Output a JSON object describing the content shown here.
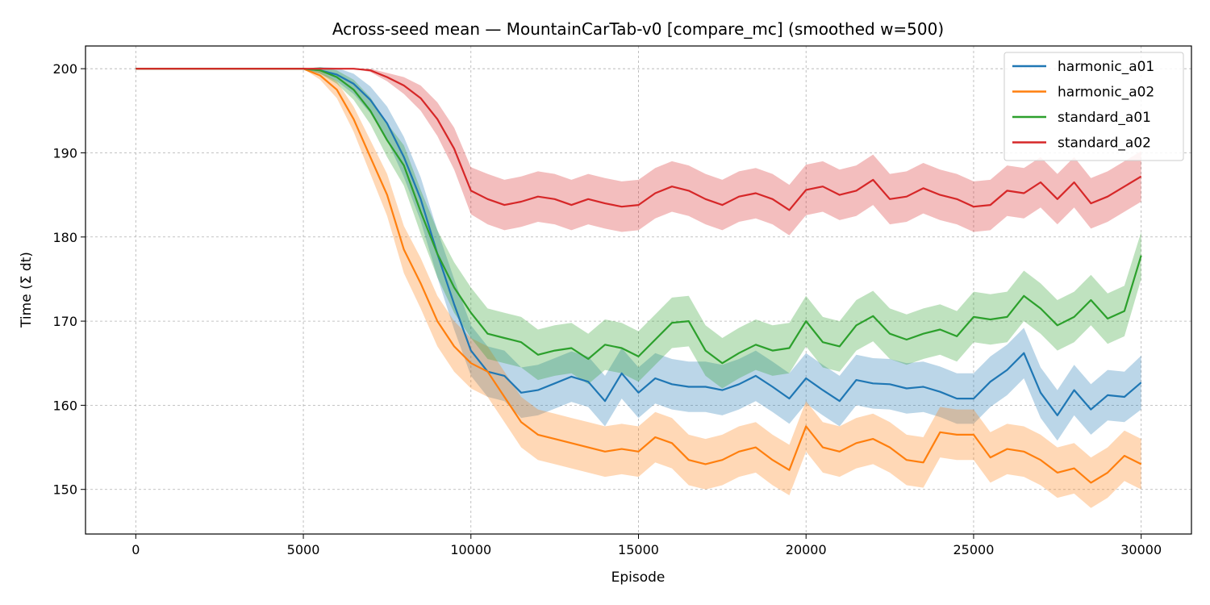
{
  "chart_data": {
    "type": "line",
    "title": "Across-seed mean — MountainCarTab-v0 [compare_mc] (smoothed w=500)",
    "xlabel": "Episode",
    "ylabel": "Time (Σ dt)",
    "xlim": [
      -1500,
      31500
    ],
    "ylim": [
      144.7,
      202.7
    ],
    "xticks": [
      0,
      5000,
      10000,
      15000,
      20000,
      25000,
      30000
    ],
    "xtick_labels": [
      "0",
      "5000",
      "10000",
      "15000",
      "20000",
      "25000",
      "30000"
    ],
    "yticks": [
      150,
      160,
      170,
      180,
      190,
      200
    ],
    "ytick_labels": [
      "150",
      "160",
      "170",
      "180",
      "190",
      "200"
    ],
    "grid": true,
    "legend_position": "top-right",
    "shaded_band": "across-seed spread",
    "series": [
      {
        "name": "harmonic_a01",
        "color": "#1f77b4",
        "x": [
          0,
          5000,
          5500,
          6000,
          6500,
          7000,
          7500,
          8000,
          8500,
          9000,
          9500,
          10000,
          10500,
          11000,
          11500,
          12000,
          12500,
          13000,
          13500,
          14000,
          14500,
          15000,
          15500,
          16000,
          16500,
          17000,
          17500,
          18000,
          18500,
          19000,
          19500,
          20000,
          20500,
          21000,
          21500,
          22000,
          22500,
          23000,
          23500,
          24000,
          24500,
          25000,
          25500,
          26000,
          26500,
          27000,
          27500,
          28000,
          28500,
          29000,
          29500,
          30000
        ],
        "values": [
          200,
          200,
          199.8,
          199.3,
          198.2,
          196.3,
          193.5,
          189.5,
          184.5,
          178,
          172,
          166.5,
          164,
          163.5,
          161.5,
          161.8,
          162.6,
          163.4,
          162.8,
          160.5,
          163.8,
          161.5,
          163.2,
          162.5,
          162.2,
          162.2,
          161.8,
          162.5,
          163.5,
          162.2,
          160.8,
          163.2,
          161.8,
          160.5,
          163,
          162.6,
          162.5,
          162,
          162.2,
          161.6,
          160.8,
          160.8,
          162.8,
          164.2,
          166.2,
          161.5,
          158.8,
          161.8,
          159.5,
          161.2,
          161,
          162.7
        ],
        "spread": [
          0,
          0,
          0.4,
          0.8,
          1.2,
          1.6,
          2,
          2.4,
          2.6,
          2.8,
          3,
          3,
          3,
          3,
          3,
          3,
          3,
          3,
          3,
          3,
          3,
          3,
          3,
          3,
          3,
          3,
          3,
          3,
          3,
          3,
          3,
          3,
          3,
          3,
          3,
          3,
          3,
          3,
          3,
          3,
          3,
          3,
          3,
          3,
          3,
          3,
          3,
          3,
          3,
          3,
          3,
          3.2
        ]
      },
      {
        "name": "harmonic_a02",
        "color": "#ff7f0e",
        "x": [
          0,
          5000,
          5500,
          6000,
          6500,
          7000,
          7500,
          8000,
          8500,
          9000,
          9500,
          10000,
          10500,
          11000,
          11500,
          12000,
          12500,
          13000,
          13500,
          14000,
          14500,
          15000,
          15500,
          16000,
          16500,
          17000,
          17500,
          18000,
          18500,
          19000,
          19500,
          20000,
          20500,
          21000,
          21500,
          22000,
          22500,
          23000,
          23500,
          24000,
          24500,
          25000,
          25500,
          26000,
          26500,
          27000,
          27500,
          28000,
          28500,
          29000,
          29500,
          30000
        ],
        "values": [
          200,
          200,
          199.2,
          197.5,
          194,
          189.5,
          185,
          178.5,
          174.5,
          170,
          167,
          165,
          164,
          161,
          158,
          156.5,
          156,
          155.5,
          155,
          154.5,
          154.8,
          154.5,
          156.2,
          155.5,
          153.5,
          153,
          153.5,
          154.5,
          155,
          153.5,
          152.3,
          157.5,
          155,
          154.5,
          155.5,
          156,
          155,
          153.5,
          153.2,
          156.8,
          156.5,
          156.5,
          153.8,
          154.8,
          154.5,
          153.5,
          152,
          152.5,
          150.8,
          152,
          154,
          153
        ],
        "spread": [
          0,
          0,
          0.5,
          1,
          1.5,
          2,
          2.5,
          2.8,
          3,
          3,
          3,
          3,
          3,
          3,
          3,
          3,
          3,
          3,
          3,
          3,
          3,
          3,
          3,
          3,
          3,
          3,
          3,
          3,
          3,
          3,
          3,
          3,
          3,
          3,
          3,
          3,
          3,
          3,
          3,
          3,
          3,
          3,
          3,
          3,
          3,
          3,
          3,
          3,
          3,
          3,
          3,
          3
        ]
      },
      {
        "name": "standard_a01",
        "color": "#2ca02c",
        "x": [
          0,
          5000,
          5500,
          6000,
          6500,
          7000,
          7500,
          8000,
          8500,
          9000,
          9500,
          10000,
          10500,
          11000,
          11500,
          12000,
          12500,
          13000,
          13500,
          14000,
          14500,
          15000,
          15500,
          16000,
          16500,
          17000,
          17500,
          18000,
          18500,
          19000,
          19500,
          20000,
          20500,
          21000,
          21500,
          22000,
          22500,
          23000,
          23500,
          24000,
          24500,
          25000,
          25500,
          26000,
          26500,
          27000,
          27500,
          28000,
          28500,
          29000,
          29500,
          30000
        ],
        "values": [
          200,
          200,
          199.8,
          199,
          197.5,
          195,
          191.5,
          188.5,
          183,
          178,
          174,
          171,
          168.5,
          168,
          167.5,
          166,
          166.5,
          166.8,
          165.5,
          167.2,
          166.8,
          165.8,
          167.8,
          169.8,
          170,
          166.5,
          165,
          166.2,
          167.2,
          166.5,
          166.8,
          170,
          167.5,
          167,
          169.5,
          170.6,
          168.5,
          167.8,
          168.5,
          169,
          168.2,
          170.5,
          170.2,
          170.5,
          173,
          171.5,
          169.5,
          170.5,
          172.5,
          170.3,
          171.2,
          177.8
        ],
        "spread": [
          0,
          0,
          0.4,
          0.8,
          1.2,
          1.6,
          2,
          2.4,
          2.6,
          2.8,
          3,
          3,
          3,
          3,
          3,
          3,
          3,
          3,
          3,
          3,
          3,
          3,
          3,
          3,
          3,
          3,
          3,
          3,
          3,
          3,
          3,
          3,
          3,
          3,
          3,
          3,
          3,
          3,
          3,
          3,
          3,
          3,
          3,
          3,
          3,
          3,
          3,
          3,
          3,
          3,
          3,
          2.8
        ]
      },
      {
        "name": "standard_a02",
        "color": "#d62728",
        "x": [
          0,
          5000,
          5500,
          6000,
          6500,
          7000,
          7500,
          8000,
          8500,
          9000,
          9500,
          10000,
          10500,
          11000,
          11500,
          12000,
          12500,
          13000,
          13500,
          14000,
          14500,
          15000,
          15500,
          16000,
          16500,
          17000,
          17500,
          18000,
          18500,
          19000,
          19500,
          20000,
          20500,
          21000,
          21500,
          22000,
          22500,
          23000,
          23500,
          24000,
          24500,
          25000,
          25500,
          26000,
          26500,
          27000,
          27500,
          28000,
          28500,
          29000,
          29500,
          30000
        ],
        "values": [
          200,
          200,
          200,
          200,
          200,
          199.8,
          199,
          198,
          196.5,
          194,
          190.5,
          185.5,
          184.5,
          183.8,
          184.2,
          184.8,
          184.5,
          183.8,
          184.5,
          184,
          183.6,
          183.8,
          185.2,
          186,
          185.5,
          184.5,
          183.8,
          184.8,
          185.2,
          184.5,
          183.2,
          185.6,
          186,
          185,
          185.5,
          186.8,
          184.5,
          184.8,
          185.8,
          185,
          184.5,
          183.6,
          183.8,
          185.5,
          185.2,
          186.5,
          184.5,
          186.5,
          184,
          184.8,
          186,
          187.2
        ],
        "spread": [
          0,
          0,
          0,
          0,
          0,
          0.2,
          0.5,
          1,
          1.5,
          2,
          2.5,
          2.8,
          3,
          3,
          3,
          3,
          3,
          3,
          3,
          3,
          3,
          3,
          3,
          3,
          3,
          3,
          3,
          3,
          3,
          3,
          3,
          3,
          3,
          3,
          3,
          3,
          3,
          3,
          3,
          3,
          3,
          3,
          3,
          3,
          3,
          3,
          3,
          3,
          3,
          3,
          3,
          3
        ]
      }
    ]
  }
}
